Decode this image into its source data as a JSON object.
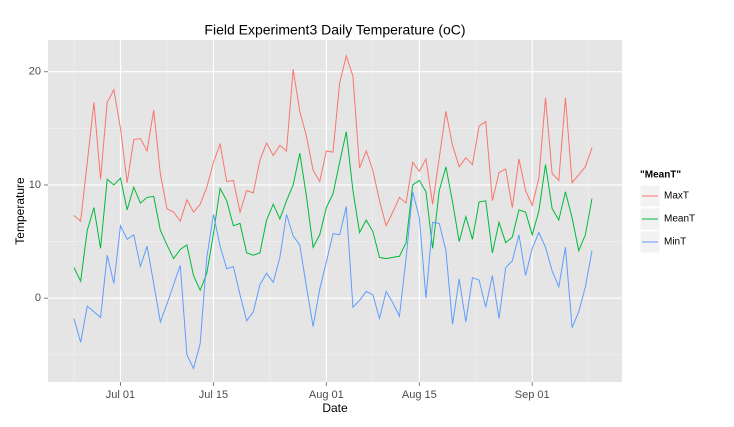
{
  "chart_data": {
    "type": "line",
    "title": "Field Experiment3 Daily Temperature (oC)",
    "x_label": "Date",
    "y_label": "Temperature",
    "legend_title": "\"MeanT\"",
    "x": [
      "Jun 24",
      "Jun 25",
      "Jun 26",
      "Jun 27",
      "Jun 28",
      "Jun 29",
      "Jun 30",
      "Jul 01",
      "Jul 02",
      "Jul 03",
      "Jul 04",
      "Jul 05",
      "Jul 06",
      "Jul 07",
      "Jul 08",
      "Jul 09",
      "Jul 10",
      "Jul 11",
      "Jul 12",
      "Jul 13",
      "Jul 14",
      "Jul 15",
      "Jul 16",
      "Jul 17",
      "Jul 18",
      "Jul 19",
      "Jul 20",
      "Jul 21",
      "Jul 22",
      "Jul 23",
      "Jul 24",
      "Jul 25",
      "Jul 26",
      "Jul 27",
      "Jul 28",
      "Jul 29",
      "Jul 30",
      "Jul 31",
      "Aug 01",
      "Aug 02",
      "Aug 03",
      "Aug 04",
      "Aug 05",
      "Aug 06",
      "Aug 07",
      "Aug 08",
      "Aug 09",
      "Aug 10",
      "Aug 11",
      "Aug 12",
      "Aug 13",
      "Aug 14",
      "Aug 15",
      "Aug 16",
      "Aug 17",
      "Aug 18",
      "Aug 19",
      "Aug 20",
      "Aug 21",
      "Aug 22",
      "Aug 23",
      "Aug 24",
      "Aug 25",
      "Aug 26",
      "Aug 27",
      "Aug 28",
      "Aug 29",
      "Aug 30",
      "Aug 31",
      "Sep 01",
      "Sep 02",
      "Sep 03",
      "Sep 04",
      "Sep 05",
      "Sep 06",
      "Sep 07",
      "Sep 08",
      "Sep 09",
      "Sep 10"
    ],
    "xticks": [
      "Jul 01",
      "Jul 15",
      "Aug 01",
      "Aug 15",
      "Sep 01"
    ],
    "series": [
      {
        "name": "MaxT",
        "color": "#F8766D",
        "values": [
          7.3,
          6.8,
          12,
          17.3,
          10.5,
          17.3,
          18.4,
          15,
          10.2,
          14,
          14.1,
          13,
          16.6,
          11,
          7.9,
          7.6,
          6.8,
          8.7,
          7.6,
          8.3,
          9.8,
          12,
          13.6,
          10.3,
          10.4,
          7.6,
          9.5,
          9.3,
          12.2,
          13.7,
          12.6,
          13.5,
          13,
          20.2,
          16.5,
          14.3,
          11.3,
          10.3,
          13,
          12.9,
          19,
          21.4,
          19.6,
          11.5,
          13,
          11.3,
          8.6,
          6.4,
          7.6,
          8.9,
          8.4,
          12,
          11.2,
          12.3,
          8.3,
          12.4,
          16.5,
          13.5,
          11.6,
          12.4,
          11.8,
          15.2,
          15.6,
          8.6,
          11.1,
          11.4,
          8,
          12.3,
          9.5,
          8.2,
          10.6,
          17.7,
          11,
          10.4,
          17.7,
          10.2,
          10.9,
          11.6,
          13.3
        ]
      },
      {
        "name": "MeanT",
        "color": "#00BA38",
        "values": [
          2.7,
          1.5,
          6,
          8,
          4.4,
          10.5,
          10,
          10.6,
          7.8,
          9.8,
          8.4,
          8.9,
          9,
          6,
          4.7,
          3.5,
          4.3,
          4.7,
          2,
          0.7,
          2.2,
          5.7,
          9.7,
          8.6,
          6.4,
          6.6,
          4,
          3.8,
          4,
          6.9,
          8.3,
          7,
          8.6,
          10,
          12.8,
          9,
          4.5,
          5.6,
          8,
          9.2,
          12,
          14.7,
          9.5,
          5.8,
          6.9,
          5.9,
          3.6,
          3.5,
          3.6,
          3.7,
          4.9,
          10,
          10.4,
          9.4,
          4.4,
          9.5,
          11.6,
          8.5,
          5,
          7.2,
          5.2,
          8.5,
          8.6,
          4,
          6.7,
          4.9,
          5.4,
          7.8,
          7.6,
          5.6,
          7.7,
          11.8,
          7.9,
          6.9,
          9.4,
          7.1,
          4.2,
          5.6,
          8.8
        ]
      },
      {
        "name": "MinT",
        "color": "#619CFF",
        "values": [
          -1.8,
          -3.9,
          -0.7,
          -1.2,
          -1.7,
          3.8,
          1.3,
          6.4,
          5.2,
          5.6,
          2.8,
          4.6,
          1.3,
          -2.1,
          -0.5,
          1.2,
          2.9,
          -5,
          -6.2,
          -4,
          3.6,
          7.4,
          4.6,
          2.6,
          2.8,
          0.3,
          -2,
          -1.2,
          1.2,
          2.2,
          1.4,
          3.6,
          7.4,
          5.5,
          4.7,
          1,
          -2.5,
          0.8,
          3.2,
          5.7,
          5.6,
          8.1,
          -0.8,
          -0.2,
          0.6,
          0.3,
          -1.8,
          0.6,
          -0.4,
          -1.6,
          3.5,
          9.4,
          7.1,
          0,
          6.7,
          6.6,
          4.2,
          -2.3,
          1.7,
          -2.1,
          1.8,
          1.6,
          -0.8,
          2,
          -1.8,
          2.7,
          3.3,
          5.6,
          2,
          4.4,
          5.8,
          4.5,
          2.4,
          1,
          4.5,
          -2.6,
          -1.2,
          1,
          4.2
        ]
      }
    ],
    "ylim": [
      -7.4,
      22.8
    ],
    "yticks": [
      0,
      10,
      20
    ],
    "grid": true
  }
}
